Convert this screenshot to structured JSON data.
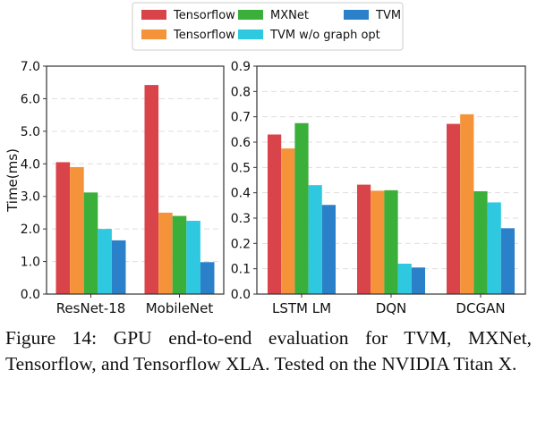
{
  "legend": {
    "entries": [
      "Tensorflow XLA",
      "Tensorflow",
      "MXNet",
      "TVM w/o graph opt",
      "TVM"
    ],
    "colors": [
      "#d9434a",
      "#f5933a",
      "#3aaf3a",
      "#2ec9e0",
      "#2a80c9"
    ]
  },
  "chart_data": [
    {
      "type": "bar",
      "ylabel": "Time(ms)",
      "ylim": [
        0,
        7
      ],
      "yticks": [
        "0.0",
        "1.0",
        "2.0",
        "3.0",
        "4.0",
        "5.0",
        "6.0",
        "7.0"
      ],
      "grid": "horizontal dashed",
      "categories": [
        "ResNet-18",
        "MobileNet"
      ],
      "series": [
        {
          "name": "Tensorflow XLA",
          "values": [
            4.05,
            6.42
          ]
        },
        {
          "name": "Tensorflow",
          "values": [
            3.9,
            2.5
          ]
        },
        {
          "name": "MXNet",
          "values": [
            3.12,
            2.4
          ]
        },
        {
          "name": "TVM w/o graph opt",
          "values": [
            2.0,
            2.25
          ]
        },
        {
          "name": "TVM",
          "values": [
            1.65,
            0.98
          ]
        }
      ]
    },
    {
      "type": "bar",
      "ylabel": "",
      "ylim": [
        0,
        0.9
      ],
      "yticks": [
        "0.0",
        "0.1",
        "0.2",
        "0.3",
        "0.4",
        "0.5",
        "0.6",
        "0.7",
        "0.8",
        "0.9"
      ],
      "grid": "horizontal dashed",
      "categories": [
        "LSTM LM",
        "DQN",
        "DCGAN"
      ],
      "series": [
        {
          "name": "Tensorflow XLA",
          "values": [
            0.63,
            0.432,
            0.672
          ]
        },
        {
          "name": "Tensorflow",
          "values": [
            0.575,
            0.408,
            0.71
          ]
        },
        {
          "name": "MXNet",
          "values": [
            0.675,
            0.41,
            0.406
          ]
        },
        {
          "name": "TVM w/o graph opt",
          "values": [
            0.43,
            0.12,
            0.362
          ]
        },
        {
          "name": "TVM",
          "values": [
            0.352,
            0.105,
            0.26
          ]
        }
      ]
    }
  ],
  "caption": "Figure 14:  GPU end-to-end evaluation for TVM, MXNet, Tensorflow, and Tensorflow XLA. Tested on the NVIDIA Titan X."
}
